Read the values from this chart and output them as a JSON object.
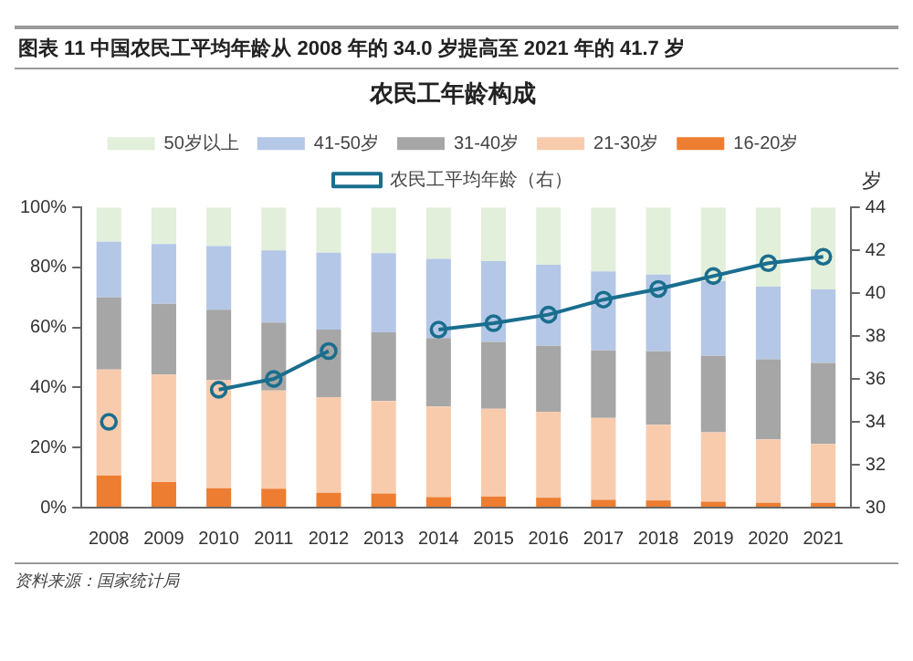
{
  "chart_data": {
    "type": "bar",
    "title": "图表 11   中国农民工平均年龄从 2008 年的 34.0 岁提高至 2021 年的 41.7 岁",
    "subtitle": "农民工年龄构成",
    "y2label": "岁",
    "annotations": [
      "资料来源：国家统计局"
    ],
    "categories": [
      "2008",
      "2009",
      "2010",
      "2011",
      "2012",
      "2013",
      "2014",
      "2015",
      "2016",
      "2017",
      "2018",
      "2019",
      "2020",
      "2021"
    ],
    "stacked": true,
    "series": [
      {
        "name": "16-20岁",
        "color": "#ed7d31",
        "values": [
          10.7,
          8.5,
          6.5,
          6.3,
          4.9,
          4.7,
          3.5,
          3.7,
          3.3,
          2.6,
          2.4,
          2.0,
          1.6,
          1.6
        ]
      },
      {
        "name": "21-30岁",
        "color": "#f8cbad",
        "values": [
          35.3,
          35.8,
          35.9,
          32.7,
          31.9,
          30.8,
          30.2,
          29.2,
          28.6,
          27.3,
          25.2,
          23.1,
          21.1,
          19.6
        ]
      },
      {
        "name": "31-40岁",
        "color": "#a6a6a6",
        "values": [
          24.0,
          23.6,
          23.5,
          22.7,
          22.5,
          22.9,
          22.8,
          22.3,
          22.0,
          22.5,
          24.5,
          25.5,
          26.7,
          27.0
        ]
      },
      {
        "name": "41-50岁",
        "color": "#b4c7e7",
        "values": [
          18.6,
          19.9,
          21.2,
          24.0,
          25.6,
          26.4,
          26.4,
          26.9,
          27.0,
          26.3,
          25.5,
          24.8,
          24.2,
          24.5
        ]
      },
      {
        "name": "50岁以上",
        "color": "#e2efda",
        "values": [
          11.4,
          12.2,
          12.9,
          14.3,
          15.1,
          15.2,
          17.1,
          17.9,
          19.2,
          21.3,
          22.4,
          24.6,
          26.4,
          27.3
        ]
      },
      {
        "name": "农民工平均年龄（右）",
        "type": "line",
        "axis": "y2",
        "color": "#1a6e8e",
        "marker": "circle",
        "values": [
          34.0,
          null,
          35.5,
          36.0,
          37.3,
          null,
          38.3,
          38.6,
          39.0,
          39.7,
          40.2,
          40.8,
          41.4,
          41.7
        ]
      }
    ],
    "ylim": [
      0,
      100
    ],
    "yticks": [
      {
        "value": 0,
        "label": "0%"
      },
      {
        "value": 20,
        "label": "20%"
      },
      {
        "value": 40,
        "label": "40%"
      },
      {
        "value": 60,
        "label": "60%"
      },
      {
        "value": 80,
        "label": "80%"
      },
      {
        "value": 100,
        "label": "100%"
      }
    ],
    "y2lim": [
      30,
      44
    ],
    "y2ticks": [
      30,
      32,
      34,
      36,
      38,
      40,
      42,
      44
    ],
    "grid": false,
    "legend": "top"
  }
}
